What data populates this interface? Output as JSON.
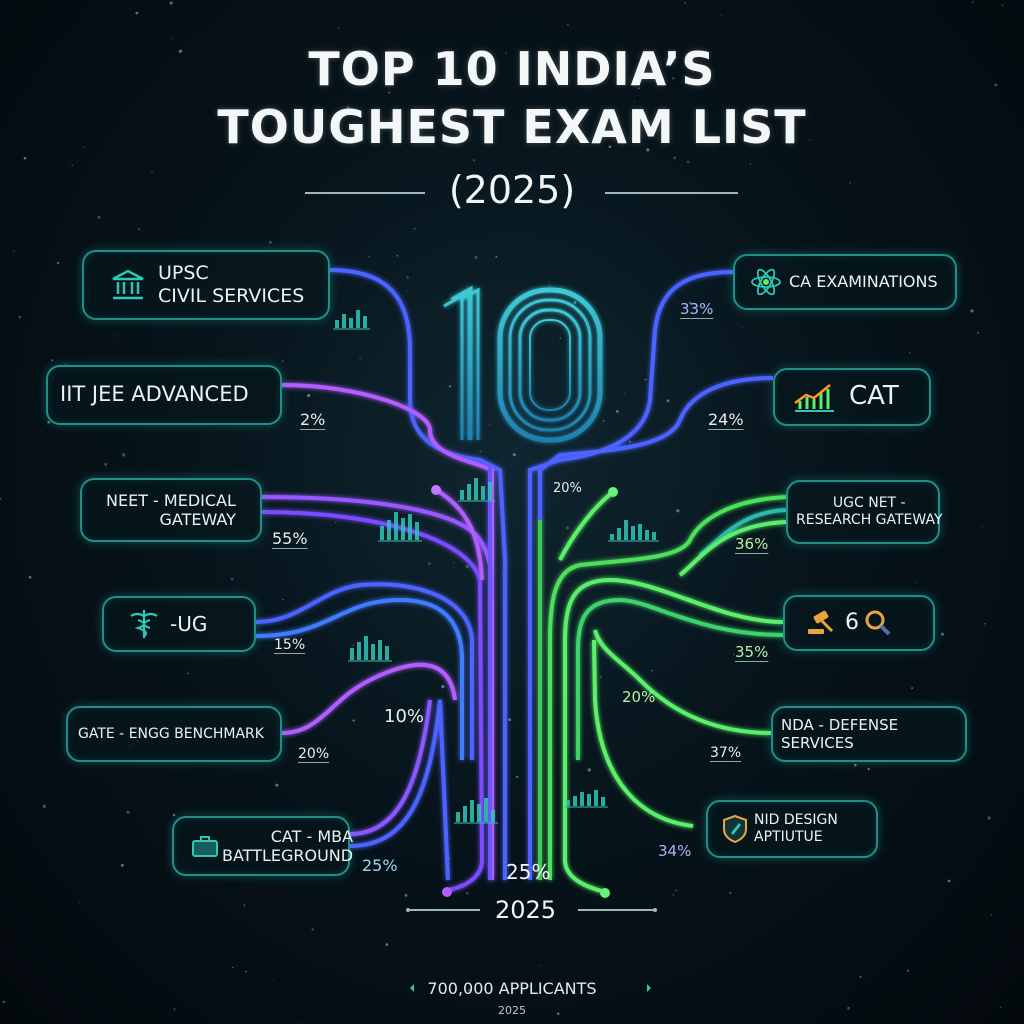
{
  "title": {
    "line1": "TOP 10 INDIA’S",
    "line2": "TOUGHEST EXAM LIST",
    "year": "(2025)"
  },
  "center": {
    "big_number": "10",
    "percent_upper_left": "20%",
    "percent_middle": "10%",
    "percent_lower_middle": "20%",
    "percent_bottom": "25%",
    "year": "2025"
  },
  "left_exams": [
    {
      "label": "UPSC\nCIVIL SERVICES",
      "icon": "bank-building-icon",
      "percent": ""
    },
    {
      "label": "IIT JEE ADVANCED",
      "icon": "",
      "percent": "2%"
    },
    {
      "label": "NEET - MEDICAL\nGATEWAY",
      "icon": "",
      "percent": "55%"
    },
    {
      "label": "-UG",
      "icon": "caduceus-icon",
      "percent": "15%"
    },
    {
      "label": "GATE - ENGG BENCHMARK",
      "icon": "",
      "percent": "20%"
    },
    {
      "label": "CAT - MBA\nBATTLEGROUND",
      "icon": "briefcase-icon",
      "percent": "25%"
    }
  ],
  "right_exams": [
    {
      "label": "CA EXAMINATIONS",
      "icon": "atom-icon",
      "percent": "33%"
    },
    {
      "label": "CAT",
      "icon": "growth-chart-icon",
      "percent": "24%"
    },
    {
      "label": "UGC NET -\nRESEARCH GATEWAY",
      "icon": "",
      "percent": "36%"
    },
    {
      "label": "6",
      "icon": "gavel-magnifier-icon",
      "percent": "35%"
    },
    {
      "label": "NDA - DEFENSE SERVICES",
      "icon": "",
      "percent": "37%"
    },
    {
      "label": "NID DESIGN APTIUTUE",
      "icon": "shield-pen-icon",
      "percent": "34%"
    }
  ],
  "footer": {
    "applicants": "700,000 APPLICANTS",
    "year": "2025"
  },
  "colors": {
    "background": "#07141b",
    "box_border": "#1f8f8a",
    "purple": "#a05cff",
    "blue": "#4b6cff",
    "green": "#5bf06a",
    "cyan": "#22d6c8"
  }
}
